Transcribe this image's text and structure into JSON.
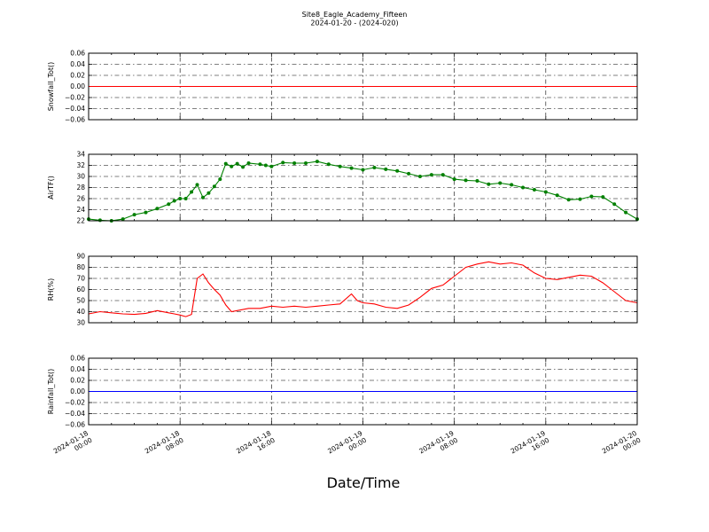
{
  "chart_data": {
    "type": "line",
    "title": "Site8_Eagle_Academy_Fifteen",
    "subtitle": "2024-01-20 - (2024-020)",
    "xlabel": "Date/Time",
    "x_ticks": [
      [
        "2024-01-18",
        "00:00"
      ],
      [
        "2024-01-18",
        "08:00"
      ],
      [
        "2024-01-18",
        "16:00"
      ],
      [
        "2024-01-19",
        "00:00"
      ],
      [
        "2024-01-19",
        "08:00"
      ],
      [
        "2024-01-19",
        "16:00"
      ],
      [
        "2024-01-20",
        "00:00"
      ]
    ],
    "x_range_hours": [
      0,
      48
    ],
    "grid": true,
    "panels": [
      {
        "ylabel": "Snowfall_Tot()",
        "ylim": [
          -0.06,
          0.06
        ],
        "yticks": [
          "0.06",
          "0.04",
          "0.02",
          "0.00",
          "−0.02",
          "−0.04",
          "−0.06"
        ],
        "color": "#ff0000",
        "markers": false,
        "x": [
          0,
          48
        ],
        "y": [
          0,
          0
        ]
      },
      {
        "ylabel": "AirTF()",
        "ylim": [
          22,
          34
        ],
        "yticks": [
          "34",
          "32",
          "30",
          "28",
          "26",
          "24",
          "22"
        ],
        "color": "#008000",
        "markers": true,
        "x": [
          0,
          1,
          2,
          3,
          4,
          5,
          6,
          7,
          7.5,
          8,
          8.5,
          9,
          9.5,
          10,
          10.5,
          11,
          11.5,
          12,
          12.5,
          13,
          13.5,
          14,
          15,
          15.5,
          16,
          17,
          18,
          19,
          20,
          21,
          22,
          23,
          24,
          25,
          26,
          27,
          28,
          29,
          30,
          31,
          32,
          33,
          34,
          35,
          36,
          37,
          38,
          39,
          40,
          41,
          42,
          43,
          44,
          45,
          46,
          47,
          48
        ],
        "y": [
          22.3,
          22.1,
          22.0,
          22.3,
          23.1,
          23.5,
          24.2,
          25.0,
          25.6,
          26.0,
          26.0,
          27.2,
          28.5,
          26.2,
          27.0,
          28.2,
          29.5,
          32.3,
          31.8,
          32.3,
          31.7,
          32.4,
          32.2,
          32.0,
          31.8,
          32.5,
          32.4,
          32.4,
          32.7,
          32.2,
          31.8,
          31.5,
          31.2,
          31.6,
          31.3,
          31.0,
          30.5,
          30.0,
          30.3,
          30.3,
          29.5,
          29.3,
          29.2,
          28.6,
          28.8,
          28.5,
          28.0,
          27.6,
          27.2,
          26.6,
          25.8,
          25.9,
          26.4,
          26.3,
          25.0,
          23.5,
          22.3
        ]
      },
      {
        "ylabel": "RH(%)",
        "ylim": [
          30,
          90
        ],
        "yticks": [
          "90",
          "80",
          "70",
          "60",
          "50",
          "40",
          "30"
        ],
        "color": "#ff0000",
        "markers": false,
        "x": [
          0,
          1,
          2,
          3,
          4,
          5,
          6,
          7,
          7.5,
          8,
          8.5,
          9,
          9.5,
          10,
          10.5,
          11,
          11.5,
          12,
          12.5,
          13,
          14,
          15,
          16,
          17,
          18,
          19,
          20,
          21,
          22,
          23,
          23.5,
          24,
          25,
          26,
          27,
          28,
          29,
          30,
          31,
          32,
          33,
          34,
          35,
          36,
          37,
          38,
          39,
          40,
          41,
          42,
          43,
          44,
          45,
          46,
          47,
          48
        ],
        "y": [
          38.0,
          40.0,
          39.0,
          38.0,
          37.5,
          38.5,
          41.0,
          39.0,
          38.0,
          37.0,
          35.5,
          37.5,
          70.0,
          74.0,
          66.0,
          60.0,
          55.0,
          46.0,
          40.0,
          41.0,
          43.0,
          43.0,
          45.0,
          44.0,
          45.0,
          44.0,
          45.0,
          46.0,
          47.0,
          56.0,
          50.0,
          48.0,
          47.0,
          44.0,
          43.0,
          46.0,
          53.0,
          61.0,
          64.0,
          72.0,
          80.0,
          83.0,
          85.0,
          83.0,
          84.0,
          82.0,
          75.0,
          70.0,
          69.0,
          71.0,
          73.0,
          72.0,
          66.0,
          58.0,
          50.0,
          48.0
        ]
      },
      {
        "ylabel": "Rainfall_Tot()",
        "ylim": [
          -0.06,
          0.06
        ],
        "yticks": [
          "0.06",
          "0.04",
          "0.02",
          "0.00",
          "−0.02",
          "−0.04",
          "−0.06"
        ],
        "color": "#0000ff",
        "markers": false,
        "x": [
          0,
          48
        ],
        "y": [
          0,
          0
        ]
      }
    ]
  }
}
